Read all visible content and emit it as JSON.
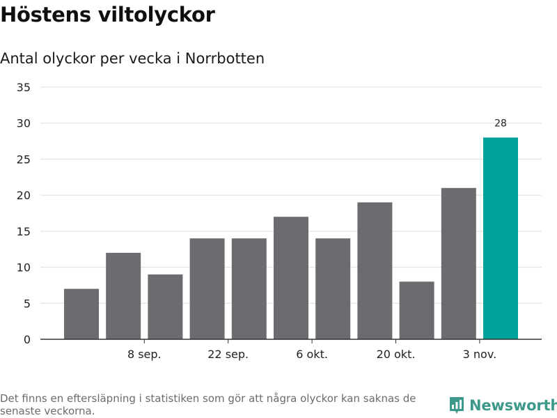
{
  "title": "Höstens viltolyckor",
  "subtitle": "Antal olyckor per vecka i Norrbotten",
  "footnote": "Det finns en eftersläpning i statistiken som gör att några olyckor kan saknas de senaste veckorna.",
  "brand": {
    "name": "Newsworthy",
    "icon": "newsworthy-logo-icon",
    "color": "#3d9a8a"
  },
  "colors": {
    "bar": "#6c6b70",
    "highlight": "#00a39a",
    "grid": "#dddddd",
    "axis": "#333333"
  },
  "chart_data": {
    "type": "bar",
    "title": "Höstens viltolyckor",
    "subtitle": "Antal olyckor per vecka i Norrbotten",
    "xlabel": "",
    "ylabel": "",
    "ylim": [
      0,
      35
    ],
    "yticks": [
      0,
      5,
      10,
      15,
      20,
      25,
      30,
      35
    ],
    "grid": true,
    "values": [
      7,
      12,
      9,
      14,
      14,
      17,
      14,
      19,
      8,
      21,
      28
    ],
    "xtick_labels": [
      {
        "index": 1.5,
        "label": "8 sep."
      },
      {
        "index": 3.5,
        "label": "22 sep."
      },
      {
        "index": 5.5,
        "label": "6 okt."
      },
      {
        "index": 7.5,
        "label": "20 okt."
      },
      {
        "index": 9.5,
        "label": "3 nov."
      }
    ],
    "highlight_index": 10,
    "data_labels": [
      {
        "index": 10,
        "label": "28"
      }
    ]
  }
}
